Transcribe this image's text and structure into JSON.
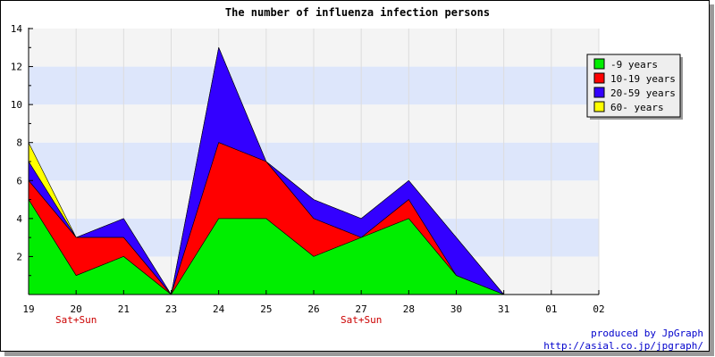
{
  "chart_data": {
    "type": "area",
    "stacked": true,
    "title": "The number of influenza infection persons",
    "categories": [
      "19",
      "20",
      "21",
      "23",
      "24",
      "25",
      "26",
      "27",
      "28",
      "30",
      "31",
      "01",
      "02"
    ],
    "weekend_labels": [
      {
        "category": "20",
        "text": "Sat+Sun"
      },
      {
        "category": "27",
        "text": "Sat+Sun"
      }
    ],
    "ylim": [
      0,
      14
    ],
    "yticks": [
      2,
      4,
      6,
      8,
      10,
      12,
      14
    ],
    "grid": true,
    "legend_position": "top-right",
    "series": [
      {
        "name": "-9 years",
        "color": "#00ee00",
        "values": [
          5,
          1,
          2,
          0,
          4,
          4,
          2,
          3,
          4,
          1,
          0,
          null,
          null
        ]
      },
      {
        "name": "10-19 years",
        "color": "#ff0000",
        "values": [
          1,
          2,
          1,
          0,
          4,
          3,
          2,
          0,
          1,
          0,
          0,
          null,
          null
        ]
      },
      {
        "name": "20-59 years",
        "color": "#3300ff",
        "values": [
          1,
          0,
          1,
          0,
          5,
          0,
          1,
          1,
          1,
          2,
          0,
          null,
          null
        ]
      },
      {
        "name": "60- years",
        "color": "#ffff00",
        "values": [
          1,
          0,
          0,
          0,
          0,
          0,
          0,
          0,
          0,
          0,
          0,
          null,
          null
        ]
      }
    ]
  },
  "credit": {
    "line1": "produced by JpGraph",
    "line2": "http://asial.co.jp/jpgraph/"
  }
}
